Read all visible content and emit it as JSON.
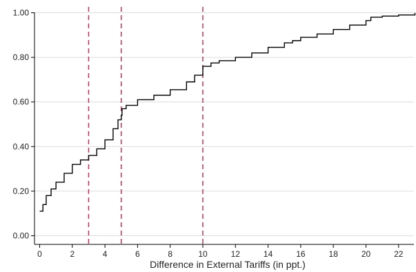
{
  "chart_data": {
    "type": "line",
    "title": "",
    "xlabel": "Difference in External Tariffs (in ppt.)",
    "ylabel": "",
    "xlim": [
      0,
      23
    ],
    "ylim": [
      0,
      1
    ],
    "x_ticks": [
      0,
      2,
      4,
      6,
      8,
      10,
      12,
      14,
      16,
      18,
      20,
      22
    ],
    "y_ticks": [
      0.0,
      0.2,
      0.4,
      0.6,
      0.8,
      1.0
    ],
    "x_tick_labels": [
      "0",
      "2",
      "4",
      "6",
      "8",
      "10",
      "12",
      "14",
      "16",
      "18",
      "20",
      "22"
    ],
    "y_tick_labels": [
      "0.00",
      "0.20",
      "0.40",
      "0.60",
      "0.80",
      "1.00"
    ],
    "grid": "horizontal",
    "legend": "none",
    "series": [
      {
        "style": "step",
        "color": "#000000",
        "x": [
          0.0,
          0.2,
          0.4,
          0.7,
          1.0,
          1.5,
          2.0,
          2.5,
          3.0,
          3.5,
          4.0,
          4.5,
          4.8,
          5.0,
          5.05,
          5.3,
          6.0,
          7.0,
          8.0,
          9.0,
          9.5,
          10.0,
          10.5,
          11.0,
          12.0,
          13.0,
          14.0,
          15.0,
          15.5,
          16.0,
          17.0,
          18.0,
          19.0,
          20.0,
          20.3,
          21.0,
          22.0,
          23.0
        ],
        "y": [
          0.11,
          0.14,
          0.18,
          0.21,
          0.24,
          0.28,
          0.32,
          0.34,
          0.36,
          0.39,
          0.43,
          0.48,
          0.52,
          0.54,
          0.57,
          0.585,
          0.61,
          0.63,
          0.655,
          0.69,
          0.72,
          0.76,
          0.775,
          0.785,
          0.8,
          0.82,
          0.845,
          0.865,
          0.875,
          0.89,
          0.905,
          0.925,
          0.945,
          0.965,
          0.98,
          0.985,
          0.99,
          1.0
        ]
      }
    ],
    "reference_lines": [
      {
        "axis": "x",
        "value": 3,
        "style": "dashed",
        "color": "#c0305a"
      },
      {
        "axis": "x",
        "value": 5,
        "style": "dashed",
        "color": "#c0305a"
      },
      {
        "axis": "x",
        "value": 10,
        "style": "dashed",
        "color": "#c0305a"
      }
    ]
  }
}
